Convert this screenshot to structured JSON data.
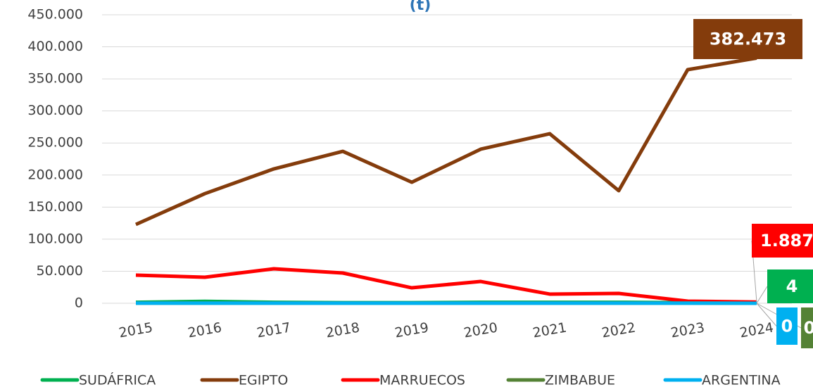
{
  "chart_data": {
    "type": "line",
    "title": "(t)",
    "categories": [
      "2015",
      "2016",
      "2017",
      "2018",
      "2019",
      "2020",
      "2021",
      "2022",
      "2023",
      "2024"
    ],
    "series": [
      {
        "name": "SUDÁFRICA",
        "color": "#00b050",
        "values": [
          1500,
          3000,
          1500,
          1000,
          1000,
          1500,
          1500,
          1500,
          1000,
          4
        ]
      },
      {
        "name": "EGIPTO",
        "color": "#843c0c",
        "values": [
          122900,
          171000,
          209600,
          237000,
          188800,
          240400,
          264500,
          175600,
          364400,
          382473
        ],
        "value_labels": [
          null,
          null,
          null,
          null,
          null,
          null,
          null,
          null,
          null,
          "382.473"
        ]
      },
      {
        "name": "MARRUECOS",
        "color": "#ff0000",
        "values": [
          43900,
          40600,
          53800,
          47200,
          24100,
          34000,
          14300,
          15400,
          3300,
          1887
        ],
        "value_labels": [
          null,
          null,
          null,
          null,
          null,
          null,
          null,
          null,
          null,
          "1.887"
        ]
      },
      {
        "name": "ZIMBABUE",
        "color": "#548235",
        "values": [
          300,
          300,
          300,
          300,
          300,
          300,
          300,
          300,
          300,
          0
        ]
      },
      {
        "name": "ARGENTINA",
        "color": "#00b0f0",
        "values": [
          200,
          200,
          200,
          200,
          200,
          200,
          200,
          200,
          200,
          0
        ]
      }
    ],
    "ylim": [
      0,
      450000
    ],
    "yticks": [
      0,
      {
        "value": 50000,
        "label": "50.000"
      },
      {
        "value": 100000,
        "label": "100.000"
      },
      {
        "value": 150000,
        "label": "150.000"
      },
      {
        "value": 200000,
        "label": "200.000"
      },
      {
        "value": 250000,
        "label": "250.000"
      },
      {
        "value": 300000,
        "label": "300.000"
      },
      {
        "value": 350000,
        "label": "350.000"
      },
      {
        "value": 400000,
        "label": "400.000"
      },
      {
        "value": 450000,
        "label": "450.000"
      }
    ],
    "grid": true,
    "legend": "bottom"
  }
}
